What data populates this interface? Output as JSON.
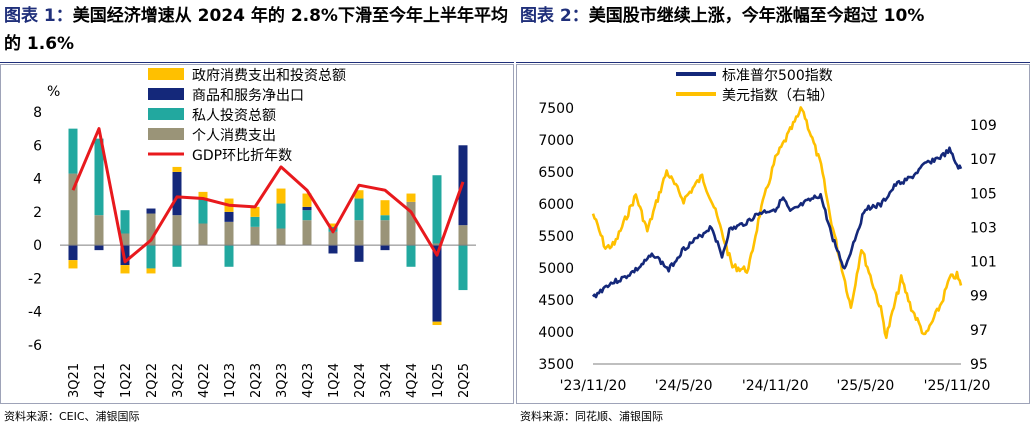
{
  "left": {
    "fig_label": "图表 1",
    "title": "美国经济增速从 2024 年的 2.8%下滑至今年上半年平均的 1.6%",
    "source": "资料来源：CEIC、浦银国际"
  },
  "right": {
    "fig_label": "图表 2",
    "title": "美国股市继续上涨，今年涨幅至今超过 10%",
    "source": "资料来源：同花顺、浦银国际"
  },
  "chart_data": [
    {
      "type": "bar",
      "stacked": true,
      "title": "",
      "ylabel": "%",
      "ylim": [
        -6,
        8
      ],
      "yticks": [
        -6,
        -4,
        -2,
        0,
        2,
        4,
        6,
        8
      ],
      "grid": false,
      "legend_position": "top-right",
      "categories": [
        "3Q21",
        "4Q21",
        "1Q22",
        "2Q22",
        "3Q22",
        "4Q22",
        "1Q23",
        "2Q23",
        "3Q23",
        "4Q23",
        "1Q24",
        "2Q24",
        "3Q24",
        "4Q24",
        "1Q25",
        "2Q25"
      ],
      "category_labels_shown": [
        "3Q21",
        "4Q21",
        "1Q22",
        "2Q22",
        "3Q22",
        "4Q22",
        "1Q23",
        "2Q23",
        "3Q23",
        "4Q23",
        "1Q24",
        "2Q24",
        "3Q24",
        "4Q24",
        "1Q25",
        "2Q25"
      ],
      "colors": {
        "gov": "#ffc000",
        "net_exports": "#14287a",
        "investment": "#22a89f",
        "consumption": "#9a9478",
        "gdp": "#e8191d"
      },
      "series": [
        {
          "key": "gov",
          "name": "政府消费支出和投资总额",
          "kind": "bar",
          "values": [
            -0.5,
            0.0,
            -0.5,
            -0.3,
            0.3,
            0.4,
            0.8,
            0.6,
            0.9,
            0.8,
            0.2,
            0.5,
            0.9,
            0.5,
            -0.2,
            0.0
          ]
        },
        {
          "key": "net_exports",
          "name": "商品和服务净出口",
          "kind": "bar",
          "values": [
            -0.9,
            -0.3,
            -1.2,
            0.3,
            2.6,
            0.0,
            0.6,
            0.0,
            0.0,
            0.2,
            -0.5,
            -1.0,
            -0.3,
            0.0,
            -4.6,
            4.8
          ]
        },
        {
          "key": "investment",
          "name": "私人投资总额",
          "kind": "bar",
          "values": [
            2.7,
            4.6,
            1.4,
            -1.4,
            -1.3,
            1.5,
            -1.3,
            0.6,
            1.5,
            0.6,
            0.3,
            1.3,
            0.3,
            -1.3,
            4.1,
            -2.7
          ]
        },
        {
          "key": "consumption",
          "name": "个人消费支出",
          "kind": "bar",
          "values": [
            4.3,
            1.8,
            0.7,
            1.9,
            1.8,
            1.3,
            1.4,
            1.1,
            1.0,
            1.5,
            0.8,
            1.5,
            1.5,
            2.6,
            0.1,
            1.2
          ]
        },
        {
          "key": "gdp",
          "name": "GDP环比折年数",
          "kind": "line",
          "values": [
            3.3,
            7.0,
            -1.0,
            0.3,
            2.9,
            2.8,
            2.4,
            2.3,
            4.7,
            3.3,
            0.8,
            3.6,
            3.3,
            2.0,
            -0.6,
            3.8
          ]
        }
      ]
    },
    {
      "type": "line",
      "title": "",
      "x_range": [
        "2023-11-20",
        "2025-11-28"
      ],
      "xticks": [
        "'23/11/20",
        "'24/5/20",
        "'24/11/20",
        "'25/5/20",
        "'25/11/20"
      ],
      "y_left": {
        "range": [
          3500,
          7500
        ],
        "ticks": [
          3500,
          4000,
          4500,
          5000,
          5500,
          6000,
          6500,
          7000,
          7500
        ]
      },
      "y_right": {
        "range": [
          95,
          110
        ],
        "ticks": [
          95,
          97,
          99,
          101,
          103,
          105,
          107,
          109
        ]
      },
      "grid": false,
      "legend_position": "top-center",
      "series": [
        {
          "name": "标准普尔500指数",
          "axis": "left",
          "color": "#14287a",
          "x": [
            "2023-11-20",
            "2023-12-20",
            "2024-01-20",
            "2024-02-20",
            "2024-03-20",
            "2024-04-20",
            "2024-05-20",
            "2024-06-20",
            "2024-07-15",
            "2024-08-05",
            "2024-08-20",
            "2024-09-20",
            "2024-10-20",
            "2024-11-20",
            "2024-12-06",
            "2024-12-20",
            "2025-01-20",
            "2025-02-19",
            "2025-03-13",
            "2025-04-08",
            "2025-04-20",
            "2025-05-20",
            "2025-06-20",
            "2025-07-20",
            "2025-08-20",
            "2025-09-20",
            "2025-10-20",
            "2025-11-05",
            "2025-11-20",
            "2025-11-28"
          ],
          "y": [
            4540,
            4740,
            4840,
            5000,
            5220,
            4970,
            5300,
            5480,
            5650,
            5180,
            5590,
            5700,
            5860,
            5920,
            6090,
            5870,
            6020,
            6140,
            5520,
            4980,
            5250,
            5940,
            5980,
            6300,
            6410,
            6640,
            6740,
            6840,
            6600,
            6550
          ]
        },
        {
          "name": "美元指数（右轴）",
          "axis": "right",
          "color": "#ffc000",
          "x": [
            "2023-11-20",
            "2023-12-15",
            "2024-01-02",
            "2024-02-14",
            "2024-03-08",
            "2024-04-16",
            "2024-05-20",
            "2024-06-26",
            "2024-07-20",
            "2024-08-26",
            "2024-09-27",
            "2024-10-20",
            "2024-11-20",
            "2025-01-13",
            "2025-02-20",
            "2025-03-10",
            "2025-04-21",
            "2025-05-12",
            "2025-06-20",
            "2025-07-01",
            "2025-07-31",
            "2025-08-20",
            "2025-09-17",
            "2025-10-20",
            "2025-11-05",
            "2025-11-20",
            "2025-11-28"
          ],
          "y": [
            103.8,
            101.8,
            102.0,
            104.9,
            102.8,
            106.3,
            104.6,
            106.0,
            104.2,
            100.7,
            100.5,
            103.8,
            107.0,
            110.0,
            106.6,
            103.7,
            98.3,
            101.8,
            98.2,
            96.6,
            100.0,
            98.3,
            96.6,
            98.6,
            100.0,
            100.2,
            99.6
          ]
        }
      ]
    }
  ]
}
